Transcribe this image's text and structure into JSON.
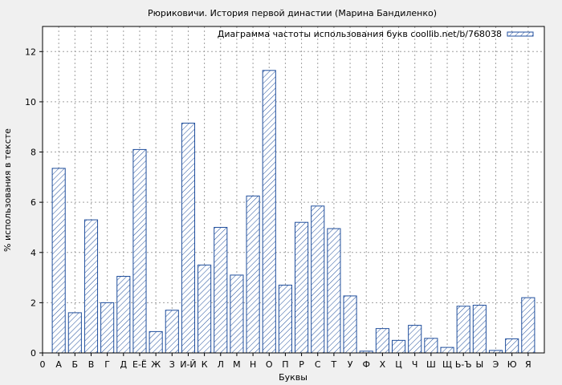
{
  "chart_data": {
    "type": "bar",
    "title": "Рюриковичи. История первой династии (Марина Бандиленко)",
    "xlabel": "Буквы",
    "ylabel": "% использования в тексте",
    "legend": "Диаграмма частоты использования букв coollib.net/b/768038",
    "legend_position": "top-right",
    "grid": true,
    "ylim": [
      0,
      13
    ],
    "yticks": [
      0,
      2,
      4,
      6,
      8,
      10,
      12
    ],
    "x_tick_labels": [
      "0",
      "А",
      "Б",
      "В",
      "Г",
      "Д",
      "Е-Ё",
      "Ж",
      "З",
      "И-Й",
      "К",
      "Л",
      "М",
      "Н",
      "О",
      "П",
      "Р",
      "С",
      "Т",
      "У",
      "Ф",
      "Х",
      "Ц",
      "Ч",
      "Ш",
      "Щ",
      "Ь-Ъ",
      "Ы",
      "Э",
      "Ю",
      "Я"
    ],
    "categories": [
      "А",
      "Б",
      "В",
      "Г",
      "Д",
      "Е-Ё",
      "Ж",
      "З",
      "И-Й",
      "К",
      "Л",
      "М",
      "Н",
      "О",
      "П",
      "Р",
      "С",
      "Т",
      "У",
      "Ф",
      "Х",
      "Ц",
      "Ч",
      "Ш",
      "Щ",
      "Ь-Ъ",
      "Ы",
      "Э",
      "Ю",
      "Я"
    ],
    "values": [
      7.35,
      1.6,
      5.3,
      2.0,
      3.05,
      8.1,
      0.85,
      1.7,
      9.15,
      3.5,
      5.0,
      3.1,
      6.25,
      11.25,
      2.7,
      5.2,
      5.85,
      4.95,
      2.27,
      0.07,
      0.97,
      0.5,
      1.1,
      0.58,
      0.22,
      1.86,
      1.9,
      0.1,
      0.56,
      2.2
    ],
    "colors": {
      "bar_stroke": "#1f4e9c",
      "background": "#f0f0f0",
      "plot_background": "#ffffff"
    }
  }
}
